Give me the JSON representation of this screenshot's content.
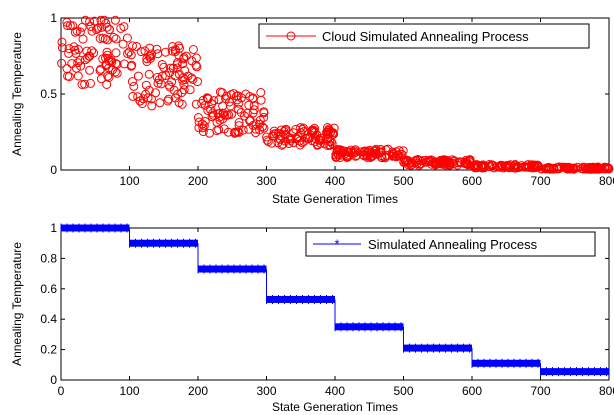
{
  "chart_data": [
    {
      "type": "scatter",
      "title": "",
      "xlabel": "State Generation Times",
      "ylabel": "Annealing Temperature",
      "xlim": [
        0,
        800
      ],
      "ylim": [
        0,
        1
      ],
      "xticks": [
        "100",
        "200",
        "300",
        "400",
        "500",
        "600",
        "700",
        "800"
      ],
      "yticks": [
        "0",
        "0.5",
        "1"
      ],
      "grid": false,
      "legend_position": "top-right",
      "series": [
        {
          "name": "Cloud Simulated Annealing Process",
          "color": "#ff0000",
          "marker": "circle",
          "segments": [
            {
              "x": [
                0,
                100
              ],
              "center": 0.78,
              "spread": 0.22
            },
            {
              "x": [
                100,
                200
              ],
              "center": 0.62,
              "spread": 0.2
            },
            {
              "x": [
                200,
                300
              ],
              "center": 0.38,
              "spread": 0.14
            },
            {
              "x": [
                300,
                400
              ],
              "center": 0.22,
              "spread": 0.06
            },
            {
              "x": [
                400,
                500
              ],
              "center": 0.11,
              "spread": 0.03
            },
            {
              "x": [
                500,
                600
              ],
              "center": 0.05,
              "spread": 0.02
            },
            {
              "x": [
                600,
                700
              ],
              "center": 0.025,
              "spread": 0.012
            },
            {
              "x": [
                700,
                800
              ],
              "center": 0.012,
              "spread": 0.008
            }
          ]
        }
      ]
    },
    {
      "type": "line",
      "title": "",
      "xlabel": "State Generation Times",
      "ylabel": "Annealing Temperature",
      "xlim": [
        0,
        800
      ],
      "ylim": [
        0,
        1
      ],
      "xticks": [
        "0",
        "100",
        "200",
        "300",
        "400",
        "500",
        "600",
        "700",
        "800"
      ],
      "yticks": [
        "0",
        "0.2",
        "0.4",
        "0.6",
        "0.8",
        "1"
      ],
      "grid": false,
      "legend_position": "top-right",
      "series": [
        {
          "name": "Simulated Annealing Process",
          "color": "#0000ff",
          "marker": "star",
          "steps": [
            {
              "x": [
                0,
                100
              ],
              "y": 1.0
            },
            {
              "x": [
                100,
                200
              ],
              "y": 0.9
            },
            {
              "x": [
                200,
                300
              ],
              "y": 0.73
            },
            {
              "x": [
                300,
                400
              ],
              "y": 0.53
            },
            {
              "x": [
                400,
                500
              ],
              "y": 0.35
            },
            {
              "x": [
                500,
                600
              ],
              "y": 0.21
            },
            {
              "x": [
                600,
                700
              ],
              "y": 0.11
            },
            {
              "x": [
                700,
                800
              ],
              "y": 0.055
            }
          ]
        }
      ]
    }
  ]
}
